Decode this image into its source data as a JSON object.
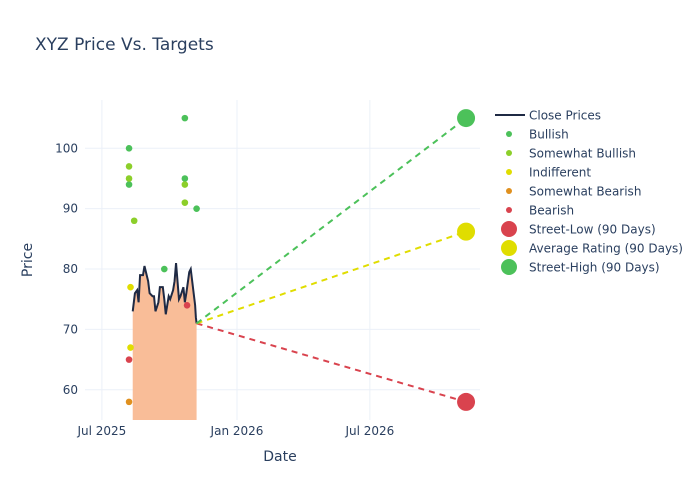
{
  "chart_data": {
    "type": "scatter",
    "title": "XYZ Price Vs. Targets",
    "xlabel": "Date",
    "ylabel": "Price",
    "xlim": [
      "2025-06-08",
      "2026-11-28"
    ],
    "ylim": [
      55,
      108
    ],
    "x_ticks": [
      {
        "date": "2025-07-01",
        "label": "Jul 2025"
      },
      {
        "date": "2026-01-01",
        "label": "Jan 2026"
      },
      {
        "date": "2026-07-01",
        "label": "Jul 2026"
      }
    ],
    "y_ticks": [
      60,
      70,
      80,
      90,
      100
    ],
    "grid": true,
    "legend_position": "right",
    "close_prices": {
      "name": "Close Prices",
      "color": "#1f2a44",
      "fill": "#f9bd98",
      "dates": [
        "2025-08-12",
        "2025-08-15",
        "2025-08-18",
        "2025-08-20",
        "2025-08-22",
        "2025-08-26",
        "2025-08-28",
        "2025-09-02",
        "2025-09-04",
        "2025-09-08",
        "2025-09-10",
        "2025-09-12",
        "2025-09-16",
        "2025-09-18",
        "2025-09-22",
        "2025-09-24",
        "2025-09-26",
        "2025-09-30",
        "2025-10-02",
        "2025-10-06",
        "2025-10-08",
        "2025-10-10",
        "2025-10-14",
        "2025-10-16",
        "2025-10-20",
        "2025-10-22",
        "2025-10-24",
        "2025-10-28",
        "2025-10-30",
        "2025-11-03",
        "2025-11-04",
        "2025-11-05",
        "2025-11-06",
        "2025-11-07"
      ],
      "values": [
        73,
        76,
        76.5,
        74.5,
        79,
        79,
        80.5,
        78,
        76,
        75.5,
        75.5,
        73,
        74.5,
        77,
        77,
        75,
        72.5,
        75.5,
        75,
        76.5,
        78,
        81,
        75,
        75.5,
        77,
        74.5,
        76,
        79.5,
        80,
        76,
        75,
        74,
        72,
        71
      ]
    },
    "ratings": [
      {
        "name": "Bullish",
        "color": "#4cc15a",
        "points": [
          [
            "2025-08-07",
            100
          ],
          [
            "2025-08-07",
            94
          ],
          [
            "2025-09-24",
            80
          ],
          [
            "2025-10-22",
            105
          ],
          [
            "2025-10-22",
            95
          ],
          [
            "2025-11-07",
            90
          ]
        ]
      },
      {
        "name": "Somewhat Bullish",
        "color": "#8ccf2a",
        "points": [
          [
            "2025-08-07",
            97
          ],
          [
            "2025-08-07",
            95
          ],
          [
            "2025-08-14",
            88
          ],
          [
            "2025-10-22",
            94
          ],
          [
            "2025-10-22",
            91
          ]
        ]
      },
      {
        "name": "Indifferent",
        "color": "#e0dd00",
        "points": [
          [
            "2025-08-09",
            77
          ],
          [
            "2025-08-09",
            67
          ]
        ]
      },
      {
        "name": "Somewhat Bearish",
        "color": "#e0901e",
        "points": [
          [
            "2025-08-07",
            58
          ]
        ]
      },
      {
        "name": "Bearish",
        "color": "#d9434e",
        "points": [
          [
            "2025-08-07",
            65
          ],
          [
            "2025-10-25",
            74
          ]
        ]
      }
    ],
    "targets": [
      {
        "name": "Street-Low (90 Days)",
        "color": "#d9434e",
        "date": "2026-11-09",
        "value": 58
      },
      {
        "name": "Average Rating (90 Days)",
        "color": "#e0dd00",
        "date": "2026-11-09",
        "value": 86.2
      },
      {
        "name": "Street-High (90 Days)",
        "color": "#4cc15a",
        "date": "2026-11-09",
        "value": 105
      }
    ]
  }
}
